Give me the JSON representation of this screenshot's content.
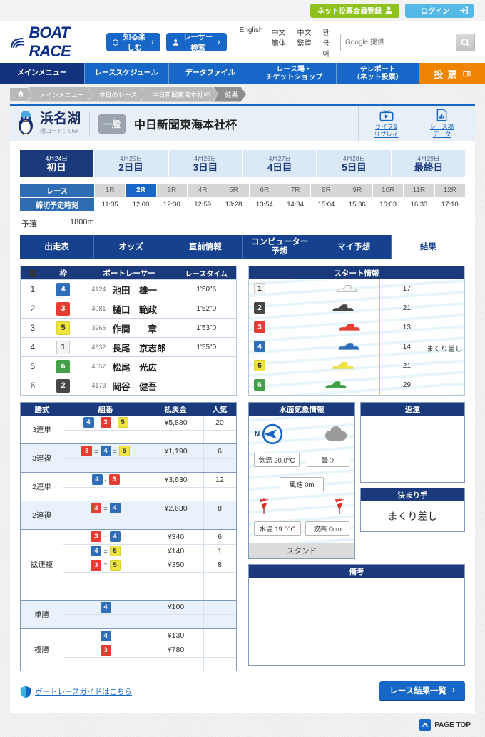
{
  "colors": {
    "accent_blue": "#1767c8",
    "navy": "#1a3a7c",
    "nav_active": "#14337f",
    "orange": "#f08300",
    "register_green": "#8dc21f",
    "login_blue": "#55b8e6",
    "water": "#bfe9f2",
    "start_line_yellow": "#e6c83d"
  },
  "frame_colors": {
    "1": {
      "bg": "#f4f4f2",
      "fg": "#333333",
      "border": "#c9c9c9"
    },
    "2": {
      "bg": "#474747",
      "fg": "#ffffff",
      "border": "#474747"
    },
    "3": {
      "bg": "#e63d32",
      "fg": "#ffffff",
      "border": "#e63d32"
    },
    "4": {
      "bg": "#2f6eb8",
      "fg": "#ffffff",
      "border": "#2f6eb8"
    },
    "5": {
      "bg": "#efe53e",
      "fg": "#333333",
      "border": "#d9cf2e"
    },
    "6": {
      "bg": "#43a047",
      "fg": "#ffffff",
      "border": "#43a047"
    }
  },
  "utility": {
    "register_label": "ネット投票会員登録",
    "login_label": "ログイン"
  },
  "header": {
    "logo_text": "BOAT RACE",
    "button_know": "知る楽しむ",
    "button_racer_search": "レーサー検索",
    "arrow": "›",
    "languages": [
      "English",
      "中文簡体",
      "中文繁體",
      "한국어"
    ],
    "search_placeholder": "Google 提供"
  },
  "mainnav": {
    "items": [
      {
        "label": "メインメニュー",
        "active": true
      },
      {
        "label": "レーススケジュール",
        "active": false
      },
      {
        "label": "データファイル",
        "active": false
      },
      {
        "label": "レース場・\nチケットショップ",
        "active": false
      },
      {
        "label": "テレポート\n（ネット投票）",
        "active": false
      }
    ],
    "vote_label": "投票"
  },
  "breadcrumb": [
    "メインメニュー",
    "本日のレース",
    "中日新聞東海本社杯",
    "結果"
  ],
  "venue": {
    "name": "浜名湖",
    "code_label": "場コード：06#",
    "grade_badge": "一般",
    "race_title": "中日新聞東海本社杯",
    "link_live": "ライブ&\nリプレイ",
    "link_data": "レース場\nデータ"
  },
  "date_tabs": [
    {
      "date": "4月24日",
      "day": "初日",
      "active": true
    },
    {
      "date": "4月25日",
      "day": "2日目",
      "active": false
    },
    {
      "date": "4月26日",
      "day": "3日目",
      "active": false
    },
    {
      "date": "4月27日",
      "day": "4日目",
      "active": false
    },
    {
      "date": "4月28日",
      "day": "5日目",
      "active": false
    },
    {
      "date": "4月29日",
      "day": "最終日",
      "active": false
    }
  ],
  "race_row": {
    "race_label": "レース",
    "deadline_label": "締切予定時刻",
    "races": [
      "1R",
      "2R",
      "3R",
      "4R",
      "5R",
      "6R",
      "7R",
      "8R",
      "9R",
      "10R",
      "11R",
      "12R"
    ],
    "active_race": "2R",
    "times": [
      "11:35",
      "12:00",
      "12:30",
      "12:59",
      "13:28",
      "13:54",
      "14:34",
      "15:04",
      "15:36",
      "16:03",
      "16:33",
      "17:10"
    ]
  },
  "race_info": {
    "class": "予選",
    "distance": "1800m"
  },
  "section_tabs": [
    {
      "label": "出走表",
      "active": false
    },
    {
      "label": "オッズ",
      "active": false
    },
    {
      "label": "直前情報",
      "active": false
    },
    {
      "label": "コンピューター\n予想",
      "active": false
    },
    {
      "label": "マイ予想",
      "active": false
    },
    {
      "label": "結果",
      "active": true
    }
  ],
  "results": {
    "headers": [
      "着",
      "枠",
      "ボートレーサー",
      "レースタイム"
    ],
    "rows": [
      {
        "place": "1",
        "frame": "4",
        "reg": "4124",
        "name": "池田　雄一",
        "time": "1'50\"6"
      },
      {
        "place": "2",
        "frame": "3",
        "reg": "4081",
        "name": "樋口　範政",
        "time": "1'52\"0"
      },
      {
        "place": "3",
        "frame": "5",
        "reg": "3966",
        "name": "作間　　章",
        "time": "1'53\"0"
      },
      {
        "place": "4",
        "frame": "1",
        "reg": "4632",
        "name": "長尾　京志郎",
        "time": "1'55\"0"
      },
      {
        "place": "5",
        "frame": "6",
        "reg": "4557",
        "name": "松尾　光広",
        "time": ""
      },
      {
        "place": "6",
        "frame": "2",
        "reg": "4173",
        "name": "岡谷　健吾",
        "time": ""
      }
    ]
  },
  "start_info": {
    "title": "スタート情報",
    "entries": [
      {
        "frame": "1",
        "st": ".17",
        "note": ""
      },
      {
        "frame": "2",
        "st": ".21",
        "note": ""
      },
      {
        "frame": "3",
        "st": ".13",
        "note": ""
      },
      {
        "frame": "4",
        "st": ".14",
        "note": "まくり差し"
      },
      {
        "frame": "5",
        "st": ".21",
        "note": ""
      },
      {
        "frame": "6",
        "st": ".29",
        "note": ""
      }
    ]
  },
  "payout": {
    "headers": [
      "勝式",
      "組番",
      "払戻金",
      "人気"
    ],
    "sections": [
      {
        "name": "3連単",
        "rows": [
          {
            "combo": [
              "4",
              "3",
              "5"
            ],
            "sep": "-",
            "payout": "¥5,880",
            "pop": "20"
          },
          {}
        ]
      },
      {
        "name": "3連複",
        "rows": [
          {
            "combo": [
              "3",
              "4",
              "5"
            ],
            "sep": "=",
            "payout": "¥1,190",
            "pop": "6"
          },
          {}
        ]
      },
      {
        "name": "2連単",
        "rows": [
          {
            "combo": [
              "4",
              "3"
            ],
            "sep": "-",
            "payout": "¥3,630",
            "pop": "12"
          },
          {}
        ]
      },
      {
        "name": "2連複",
        "rows": [
          {
            "combo": [
              "3",
              "4"
            ],
            "sep": "=",
            "payout": "¥2,630",
            "pop": "8"
          },
          {}
        ]
      },
      {
        "name": "拡連複",
        "rows": [
          {
            "combo": [
              "3",
              "4"
            ],
            "sep": "=",
            "payout": "¥340",
            "pop": "6"
          },
          {
            "combo": [
              "4",
              "5"
            ],
            "sep": "=",
            "payout": "¥140",
            "pop": "1"
          },
          {
            "combo": [
              "3",
              "5"
            ],
            "sep": "=",
            "payout": "¥350",
            "pop": "8"
          },
          {},
          {}
        ]
      },
      {
        "name": "単勝",
        "rows": [
          {
            "combo": [
              "4"
            ],
            "sep": "",
            "payout": "¥100",
            "pop": ""
          },
          {}
        ]
      },
      {
        "name": "複勝",
        "rows": [
          {
            "combo": [
              "4"
            ],
            "sep": "",
            "payout": "¥130",
            "pop": ""
          },
          {
            "combo": [
              "3"
            ],
            "sep": "",
            "payout": "¥780",
            "pop": ""
          },
          {}
        ]
      }
    ]
  },
  "weather": {
    "title": "水面気象情報",
    "compass_label": "N",
    "temp": "気温 20.0°C",
    "sky": "曇り",
    "wind": "風速 0m",
    "water_temp": "水温 19.0°C",
    "wave": "波高 0cm",
    "stand": "スタンド"
  },
  "refund": {
    "title": "返還"
  },
  "kimarite": {
    "title": "決まり手",
    "value": "まくり差し"
  },
  "remarks": {
    "title": "備考"
  },
  "bottom": {
    "guide_link": "ボートレースガイドはこちら",
    "results_button": "レース結果一覧",
    "arrow": "›",
    "page_top": "PAGE TOP"
  }
}
